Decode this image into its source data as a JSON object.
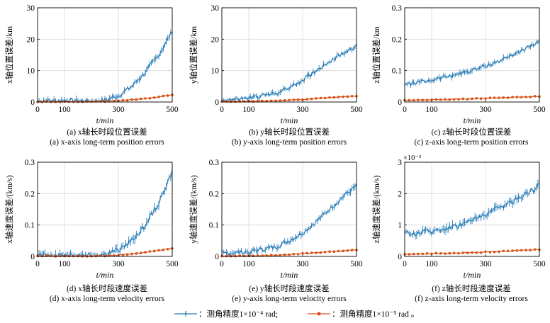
{
  "colors": {
    "s1": "#1f77b4",
    "s2": "#d95319"
  },
  "legend": {
    "s1": "：测角精度1×10⁻⁴ rad;",
    "s2": "：测角精度1×10⁻⁵ rad 。"
  },
  "chart_data": [
    {
      "type": "line",
      "id": "a",
      "caption_cn": "(a) x轴长时段位置误差",
      "caption_en": "(a) x-axis long-term position errors",
      "ylabel": "x轴位置误差/km",
      "xlabel": "t/min",
      "xlim": [
        0,
        500
      ],
      "ylim": [
        0,
        30
      ],
      "xticks": [
        "0",
        "100",
        "300",
        "500"
      ],
      "xtick_values": [
        0,
        100,
        300,
        500
      ],
      "yticks": [
        "0",
        "10",
        "20",
        "30"
      ],
      "ytick_values": [
        0,
        10,
        20,
        30
      ],
      "grid": true,
      "series": [
        {
          "x": [
            0,
            100,
            200,
            250,
            300,
            350,
            400,
            450,
            500
          ],
          "values": [
            0.3,
            0.4,
            0.3,
            0.6,
            2.0,
            5.0,
            9.5,
            15.0,
            22.5
          ],
          "err": 1.2
        },
        {
          "x": [
            0,
            100,
            200,
            250,
            300,
            350,
            400,
            450,
            500
          ],
          "values": [
            0.1,
            0.1,
            0.1,
            0.2,
            0.4,
            0.7,
            1.1,
            1.6,
            2.3
          ],
          "err": 0.15
        }
      ]
    },
    {
      "type": "line",
      "id": "b",
      "caption_cn": "(b) y轴长时段位置误差",
      "caption_en": "(b) y-axis long-term position errors",
      "ylabel": "y轴位置误差/km",
      "xlabel": "t/min",
      "xlim": [
        0,
        500
      ],
      "ylim": [
        0,
        30
      ],
      "xticks": [
        "0",
        "100",
        "300",
        "500"
      ],
      "xtick_values": [
        0,
        100,
        300,
        500
      ],
      "yticks": [
        "0",
        "10",
        "20",
        "30"
      ],
      "ytick_values": [
        0,
        10,
        20,
        30
      ],
      "grid": true,
      "series": [
        {
          "x": [
            0,
            100,
            200,
            250,
            300,
            350,
            400,
            450,
            500
          ],
          "values": [
            0.5,
            1.2,
            2.8,
            4.5,
            7.0,
            10.0,
            13.0,
            15.5,
            18.0
          ],
          "err": 1.0
        },
        {
          "x": [
            0,
            100,
            200,
            250,
            300,
            350,
            400,
            450,
            500
          ],
          "values": [
            0.1,
            0.2,
            0.4,
            0.6,
            0.8,
            1.1,
            1.4,
            1.7,
            1.9
          ],
          "err": 0.12
        }
      ]
    },
    {
      "type": "line",
      "id": "c",
      "caption_cn": "(c) z轴长时段位置误差",
      "caption_en": "(c) z-axis long-term position errors",
      "ylabel": "z轴位置误差/km",
      "xlabel": "t/min",
      "xlim": [
        0,
        500
      ],
      "ylim": [
        0,
        0.3
      ],
      "xticks": [
        "0",
        "100",
        "300",
        "500"
      ],
      "xtick_values": [
        0,
        100,
        300,
        500
      ],
      "yticks": [
        "0",
        "0.1",
        "0.2",
        "0.3"
      ],
      "ytick_values": [
        0,
        0.1,
        0.2,
        0.3
      ],
      "grid": true,
      "series": [
        {
          "x": [
            0,
            100,
            200,
            250,
            300,
            350,
            400,
            450,
            500
          ],
          "values": [
            0.055,
            0.07,
            0.09,
            0.1,
            0.115,
            0.13,
            0.15,
            0.17,
            0.19
          ],
          "err": 0.01
        },
        {
          "x": [
            0,
            100,
            200,
            250,
            300,
            350,
            400,
            450,
            500
          ],
          "values": [
            0.005,
            0.007,
            0.009,
            0.01,
            0.012,
            0.013,
            0.015,
            0.016,
            0.018
          ],
          "err": 0.002
        }
      ]
    },
    {
      "type": "line",
      "id": "d",
      "caption_cn": "(d) x轴长时段速度误差",
      "caption_en": "(d) x-axis long-term velocity errors",
      "ylabel": "x轴速度误差/(km/s)",
      "xlabel": "t/min",
      "xlim": [
        0,
        500
      ],
      "ylim": [
        0,
        0.3
      ],
      "xticks": [
        "0",
        "100",
        "300",
        "500"
      ],
      "xtick_values": [
        0,
        100,
        300,
        500
      ],
      "yticks": [
        "0",
        "0.1",
        "0.2",
        "0.3"
      ],
      "ytick_values": [
        0,
        0.1,
        0.2,
        0.3
      ],
      "grid": true,
      "series": [
        {
          "x": [
            0,
            100,
            200,
            250,
            300,
            350,
            400,
            450,
            500
          ],
          "values": [
            0.002,
            0.004,
            0.003,
            0.006,
            0.02,
            0.05,
            0.1,
            0.17,
            0.27
          ],
          "err": 0.015
        },
        {
          "x": [
            0,
            100,
            200,
            250,
            300,
            350,
            400,
            450,
            500
          ],
          "values": [
            0.001,
            0.001,
            0.001,
            0.002,
            0.004,
            0.008,
            0.013,
            0.019,
            0.026
          ],
          "err": 0.002
        }
      ]
    },
    {
      "type": "line",
      "id": "e",
      "caption_cn": "(e) y轴长时段速度误差",
      "caption_en": "(e) y-axis long-term velocity errors",
      "ylabel": "y轴速度误差/(km/s)",
      "xlabel": "t/min",
      "xlim": [
        0,
        500
      ],
      "ylim": [
        0,
        0.3
      ],
      "xticks": [
        "0",
        "100",
        "300",
        "500"
      ],
      "xtick_values": [
        0,
        100,
        300,
        500
      ],
      "yticks": [
        "0",
        "0.1",
        "0.2",
        "0.3"
      ],
      "ytick_values": [
        0,
        0.1,
        0.2,
        0.3
      ],
      "grid": true,
      "series": [
        {
          "x": [
            0,
            100,
            200,
            250,
            300,
            350,
            400,
            450,
            500
          ],
          "values": [
            0.008,
            0.015,
            0.03,
            0.05,
            0.075,
            0.11,
            0.15,
            0.19,
            0.225
          ],
          "err": 0.012
        },
        {
          "x": [
            0,
            100,
            200,
            250,
            300,
            350,
            400,
            450,
            500
          ],
          "values": [
            0.001,
            0.002,
            0.004,
            0.006,
            0.009,
            0.012,
            0.015,
            0.018,
            0.021
          ],
          "err": 0.002
        }
      ]
    },
    {
      "type": "line",
      "id": "f",
      "caption_cn": "(f) z轴长时段速度误差",
      "caption_en": "(f) z-axis long-term velocity errors",
      "ylabel": "z轴速度误差/(km/s)",
      "xlabel": "t/min",
      "exponent": "×10⁻³",
      "xlim": [
        0,
        500
      ],
      "ylim": [
        0,
        3
      ],
      "xticks": [
        "0",
        "100",
        "300",
        "500"
      ],
      "xtick_values": [
        0,
        100,
        300,
        500
      ],
      "yticks": [
        "0",
        "1",
        "2",
        "3"
      ],
      "ytick_values": [
        0,
        1,
        2,
        3
      ],
      "grid": true,
      "series": [
        {
          "x": [
            0,
            100,
            200,
            250,
            300,
            350,
            400,
            450,
            500
          ],
          "values": [
            0.7,
            0.8,
            1.0,
            1.15,
            1.35,
            1.55,
            1.75,
            2.0,
            2.25
          ],
          "err": 0.15
        },
        {
          "x": [
            0,
            100,
            200,
            250,
            300,
            350,
            400,
            450,
            500
          ],
          "values": [
            0.07,
            0.09,
            0.11,
            0.12,
            0.14,
            0.16,
            0.18,
            0.2,
            0.22
          ],
          "err": 0.02
        }
      ]
    }
  ]
}
